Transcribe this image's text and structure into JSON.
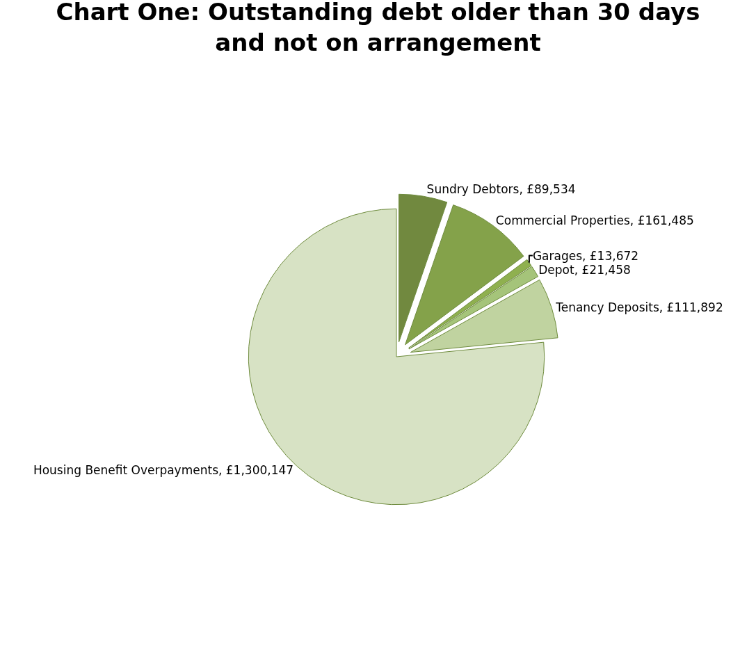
{
  "chart_data": {
    "type": "pie",
    "title": "Chart One: Outstanding debt older than 30 days and not on arrangement",
    "categories": [
      "Sundry Debtors",
      "Commercial Properties",
      "Garages",
      "Depot",
      "Tenancy Deposits",
      "Housing Benefit Overpayments"
    ],
    "values": [
      89534,
      161485,
      13672,
      21458,
      111892,
      1300147
    ],
    "value_labels": [
      "£89,534",
      "£161,485",
      "£13,672",
      "£21,458",
      "£111,892",
      "£1,300,147"
    ],
    "colors": [
      "#71893f",
      "#84a24a",
      "#8fb04f",
      "#a5c47a",
      "#c0d3a0",
      "#d7e2c4"
    ],
    "legend": false
  }
}
